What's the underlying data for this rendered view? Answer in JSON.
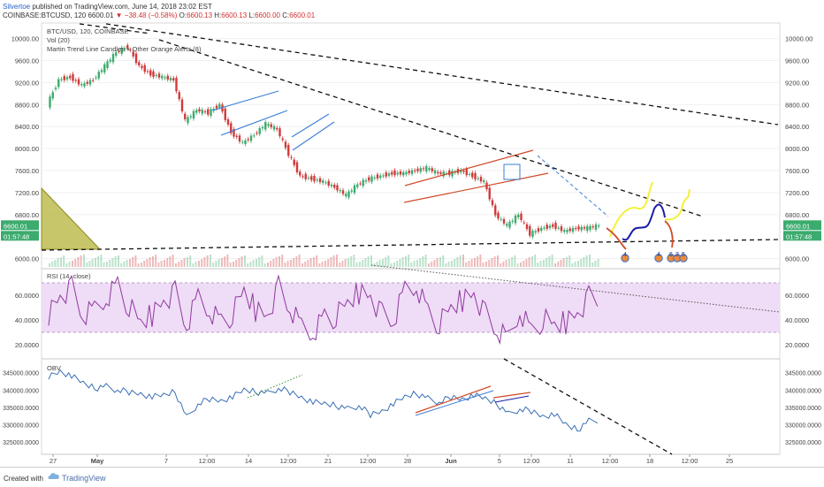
{
  "header": {
    "author": "Silvertoe",
    "published": " published on TradingView.com, June 14, 2018 23:02 EST",
    "symbol": "COINBASE:BTCUSD, 120",
    "last": "6600.01",
    "arrow": "▼",
    "change": "−38.48 (−0.58%)",
    "o_label": "O:",
    "o": "6600.13",
    "h_label": "H:",
    "h": "6600.13",
    "l_label": "L:",
    "l": "6600.00",
    "c_label": "C:",
    "c": "6600.01"
  },
  "footer": {
    "created_with": "Created with",
    "brand": "TradingView"
  },
  "colors": {
    "up": "#3cab6e",
    "down": "#d03a3a",
    "rsi_line": "#8e3a9e",
    "rsi_band": "#efdcf6",
    "obv_line": "#3a6fb4",
    "channel_blue": "#3a7fd6",
    "channel_red": "#d04a2a",
    "yellow": "#f2f23a",
    "navy": "#1a1aa8",
    "triangle": "#b5b338"
  },
  "chart_data": [
    {
      "type": "line",
      "panel": "price",
      "legend": [
        "BTC/USD, 120, COINBASE",
        "Vol (20)",
        "Martin Trend Line Candles + Other Orange Alerts (8)"
      ],
      "price_label": "6600.01",
      "countdown_label": "01:57:48",
      "ylim": [
        5850,
        10250
      ],
      "yticks": [
        "10000.00",
        "9600.00",
        "9200.00",
        "8800.00",
        "8400.00",
        "8000.00",
        "7600.00",
        "7200.00",
        "6800.00",
        "6000.00"
      ],
      "ytick_values": [
        10000,
        9600,
        9200,
        8800,
        8400,
        8000,
        7600,
        7200,
        6800,
        6000
      ],
      "xticks": [
        "27",
        "May",
        "7",
        "12:00",
        "14",
        "12:00",
        "21",
        "12:00",
        "28",
        "Jun",
        "5",
        "12:00",
        "11",
        "12:00",
        "18",
        "12:00",
        "25"
      ],
      "path_days": [
        0,
        1,
        2,
        3,
        4,
        5,
        6,
        7,
        8,
        9,
        10,
        11,
        12,
        13,
        14,
        15,
        16,
        17,
        18,
        19,
        20,
        21,
        22,
        23,
        24,
        25,
        26,
        27,
        28,
        29,
        30,
        31,
        32,
        33,
        34,
        35,
        36,
        37,
        38,
        39,
        40,
        41,
        42,
        43,
        44,
        45,
        46,
        47,
        48
      ],
      "close": [
        8800,
        9250,
        9300,
        9150,
        9250,
        9500,
        9750,
        9850,
        9500,
        9350,
        9300,
        9250,
        8500,
        8700,
        8650,
        8800,
        8300,
        8100,
        8250,
        8450,
        8350,
        7900,
        7500,
        7450,
        7400,
        7300,
        7150,
        7350,
        7450,
        7500,
        7550,
        7550,
        7600,
        7650,
        7550,
        7550,
        7600,
        7500,
        7400,
        6800,
        6600,
        6800,
        6450,
        6550,
        6600,
        6500,
        6550,
        6560,
        6600
      ],
      "markers": [
        "4",
        "4",
        "6",
        "3",
        "5"
      ]
    },
    {
      "type": "line",
      "panel": "rsi",
      "legend": "RSI (14, close)",
      "ylim": [
        10,
        80
      ],
      "band": [
        30,
        70
      ],
      "yticks": [
        "60.0000",
        "40.0000",
        "20.0000"
      ],
      "ytick_values": [
        60,
        40,
        20
      ],
      "values": [
        45,
        60,
        66,
        42,
        48,
        58,
        70,
        50,
        38,
        44,
        56,
        62,
        34,
        58,
        48,
        40,
        44,
        64,
        48,
        44,
        66,
        48,
        34,
        30,
        44,
        42,
        54,
        62,
        60,
        44,
        38,
        64,
        68,
        48,
        36,
        50,
        56,
        62,
        44,
        30,
        24,
        48,
        32,
        40,
        36,
        38,
        46,
        58,
        55
      ]
    },
    {
      "type": "line",
      "panel": "obv",
      "legend": "OBV",
      "ylim": [
        322000,
        348500
      ],
      "yticks": [
        "345000.0000",
        "340000.0000",
        "335000.0000",
        "330000.0000",
        "325000.0000"
      ],
      "ytick_values": [
        345000,
        340000,
        335000,
        330000,
        325000
      ],
      "values": [
        344000,
        345500,
        344000,
        342000,
        340500,
        341000,
        340000,
        339500,
        339000,
        338000,
        338500,
        339500,
        332000,
        336000,
        337500,
        337000,
        338000,
        340000,
        339500,
        339000,
        340500,
        339500,
        338000,
        336500,
        336000,
        335500,
        334500,
        335500,
        333000,
        334000,
        336000,
        338000,
        339000,
        337500,
        336500,
        338000,
        337500,
        338500,
        337500,
        336000,
        333000,
        334500,
        334000,
        332500,
        333000,
        330000,
        328500,
        331000,
        331500
      ]
    }
  ]
}
